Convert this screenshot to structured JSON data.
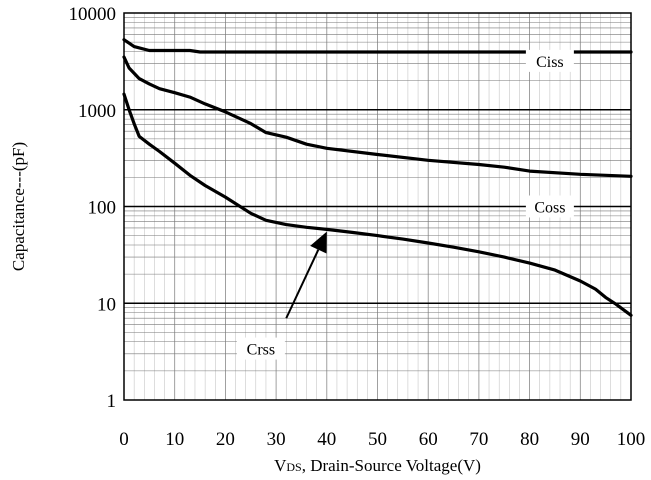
{
  "chart_data": {
    "type": "line",
    "title": "",
    "xlabel": "VDS, Drain-Source Voltage(V)",
    "xlabel_parts": {
      "sub": "DS",
      "rest": ", Drain-Source Voltage(V)",
      "main": "V"
    },
    "ylabel": "Capacitance---(pF)",
    "xlim": [
      0,
      100
    ],
    "ylim": [
      1,
      10000
    ],
    "yscale": "log",
    "grid": true,
    "x_ticks": [
      "0",
      "10",
      "20",
      "30",
      "40",
      "50",
      "60",
      "70",
      "80",
      "90",
      "100"
    ],
    "y_ticks": [
      "1",
      "10",
      "100",
      "1000",
      "10000"
    ],
    "series": [
      {
        "name": "Ciss",
        "points": [
          [
            0,
            5300
          ],
          [
            2,
            4500
          ],
          [
            5,
            4100
          ],
          [
            10,
            4100
          ],
          [
            13,
            4100
          ],
          [
            15,
            3950
          ],
          [
            20,
            3950
          ],
          [
            40,
            3950
          ],
          [
            60,
            3950
          ],
          [
            80,
            3950
          ],
          [
            100,
            3950
          ]
        ]
      },
      {
        "name": "Coss",
        "points": [
          [
            0,
            3500
          ],
          [
            1,
            2700
          ],
          [
            3,
            2100
          ],
          [
            5,
            1850
          ],
          [
            7,
            1650
          ],
          [
            10,
            1500
          ],
          [
            13,
            1350
          ],
          [
            16,
            1150
          ],
          [
            20,
            950
          ],
          [
            25,
            720
          ],
          [
            28,
            580
          ],
          [
            32,
            520
          ],
          [
            36,
            440
          ],
          [
            40,
            400
          ],
          [
            50,
            345
          ],
          [
            60,
            300
          ],
          [
            70,
            272
          ],
          [
            75,
            255
          ],
          [
            80,
            232
          ],
          [
            90,
            215
          ],
          [
            100,
            205
          ]
        ]
      },
      {
        "name": "Crss",
        "points": [
          [
            0,
            1450
          ],
          [
            1,
            1000
          ],
          [
            2,
            720
          ],
          [
            3,
            530
          ],
          [
            5,
            440
          ],
          [
            7,
            370
          ],
          [
            10,
            280
          ],
          [
            13,
            210
          ],
          [
            16,
            165
          ],
          [
            20,
            125
          ],
          [
            25,
            85
          ],
          [
            28,
            72
          ],
          [
            32,
            65
          ],
          [
            36,
            61
          ],
          [
            40,
            58
          ],
          [
            45,
            54
          ],
          [
            50,
            50
          ],
          [
            55,
            46
          ],
          [
            60,
            42
          ],
          [
            65,
            38
          ],
          [
            70,
            34
          ],
          [
            75,
            30
          ],
          [
            80,
            26
          ],
          [
            85,
            22
          ],
          [
            90,
            17
          ],
          [
            93,
            14
          ],
          [
            95,
            11.5
          ],
          [
            97,
            9.8
          ],
          [
            100,
            7.5
          ]
        ]
      }
    ],
    "annotations": [
      {
        "text": "Ciss",
        "x": 84,
        "y": 3200
      },
      {
        "text": "Coss",
        "x": 84,
        "y": 100
      },
      {
        "text": "Crss",
        "x": 27,
        "y": 3.4
      }
    ],
    "arrow": {
      "from": [
        32,
        7
      ],
      "to": [
        40,
        55
      ]
    }
  }
}
